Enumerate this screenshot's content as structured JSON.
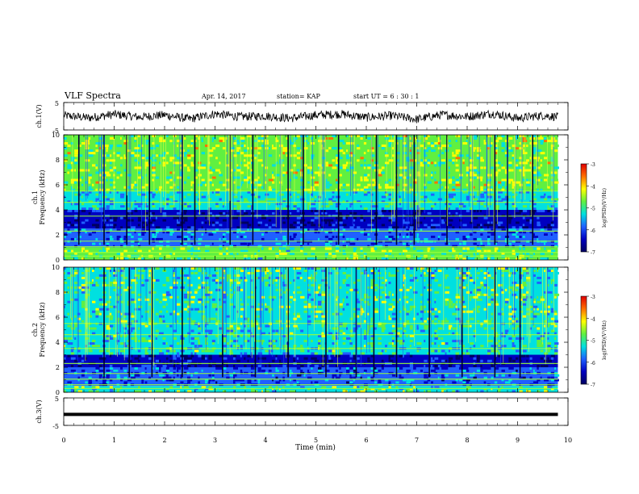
{
  "header": {
    "title": "VLF Spectra",
    "date": "Apr. 14, 2017",
    "station": "station= KAP",
    "start": "start  UT =   6 : 30 : 1"
  },
  "colorbar": {
    "label": "log(PSD)(V²/Hz)",
    "ticks": [
      "-3",
      "-4",
      "-5",
      "-6",
      "-7"
    ],
    "colors": [
      "#e00000",
      "#ff7000",
      "#ffff00",
      "#60f040",
      "#00e0e0",
      "#2060ff",
      "#0000c0",
      "#000060"
    ]
  },
  "chart_data": [
    {
      "type": "line",
      "name": "ch1_waveform",
      "ylabel": "ch.1(V)",
      "ylim": [
        -5,
        5
      ],
      "yticks": [
        "5",
        "-5"
      ],
      "xlim": [
        0,
        10
      ],
      "x": [
        0,
        0.5,
        1,
        1.5,
        2,
        2.5,
        3,
        3.5,
        4,
        4.5,
        5,
        5.5,
        6,
        6.5,
        7,
        7.5,
        8,
        8.5,
        9,
        9.5,
        9.8
      ],
      "y": [
        0.5,
        -1.2,
        1.4,
        -0.6,
        0.9,
        -2.0,
        1.8,
        -0.4,
        0.2,
        -1.5,
        0.8,
        1.6,
        -0.9,
        0.4,
        -2.2,
        1.1,
        -0.3,
        2.0,
        -1.4,
        0.6,
        -0.5
      ]
    },
    {
      "type": "heatmap",
      "name": "ch1_spectrogram",
      "ylabel": "ch.1\nFrequency (kHz)",
      "ylim": [
        0,
        10
      ],
      "yticks": [
        "0",
        "2",
        "4",
        "6",
        "8",
        "10"
      ],
      "xlim": [
        0,
        10
      ],
      "colorbar_range": [
        -7,
        -3
      ],
      "bands": [
        {
          "f_low": 5.5,
          "f_high": 10.0,
          "log_psd": -4.6
        },
        {
          "f_low": 4.0,
          "f_high": 5.5,
          "log_psd": -5.3
        },
        {
          "f_low": 2.5,
          "f_high": 4.0,
          "log_psd": -6.5
        },
        {
          "f_low": 1.0,
          "f_high": 2.5,
          "log_psd": -5.8
        },
        {
          "f_low": 0.0,
          "f_high": 1.0,
          "log_psd": -4.8
        }
      ],
      "sferic_times_min": [
        0.3,
        0.8,
        1.25,
        1.7,
        2.35,
        2.6,
        3.3,
        3.75,
        4.45,
        4.75,
        5.45,
        6.2,
        6.6,
        6.95,
        7.6,
        8.55,
        8.8,
        9.3
      ]
    },
    {
      "type": "heatmap",
      "name": "ch2_spectrogram",
      "ylabel": "ch.2\nFrequency (kHz)",
      "ylim": [
        0,
        10
      ],
      "yticks": [
        "0",
        "2",
        "4",
        "6",
        "8",
        "10"
      ],
      "xlim": [
        0,
        10
      ],
      "colorbar_range": [
        -7,
        -3
      ],
      "bands": [
        {
          "f_low": 5.0,
          "f_high": 10.0,
          "log_psd": -5.0
        },
        {
          "f_low": 3.0,
          "f_high": 5.0,
          "log_psd": -5.2
        },
        {
          "f_low": 2.0,
          "f_high": 3.0,
          "log_psd": -6.6
        },
        {
          "f_low": 0.5,
          "f_high": 2.0,
          "log_psd": -6.0
        },
        {
          "f_low": 0.0,
          "f_high": 0.5,
          "log_psd": -5.0
        }
      ],
      "sferic_times_min": [
        0.8,
        1.3,
        1.75,
        2.35,
        3.15,
        3.8,
        4.45,
        5.2,
        5.8,
        6.15,
        6.6,
        7.25,
        7.9,
        8.55,
        9.05
      ]
    },
    {
      "type": "line",
      "name": "ch3_waveform",
      "ylabel": "ch.3(V)",
      "ylim": [
        -5,
        5
      ],
      "yticks": [
        "5",
        "-5"
      ],
      "xlim": [
        0,
        10
      ],
      "x": [
        0,
        9.8
      ],
      "y": [
        -1.0,
        -1.0
      ]
    }
  ],
  "xaxis": {
    "label": "Time (min)",
    "ticks": [
      "0",
      "1",
      "2",
      "3",
      "4",
      "5",
      "6",
      "7",
      "8",
      "9",
      "10"
    ],
    "range": [
      0,
      10
    ]
  }
}
